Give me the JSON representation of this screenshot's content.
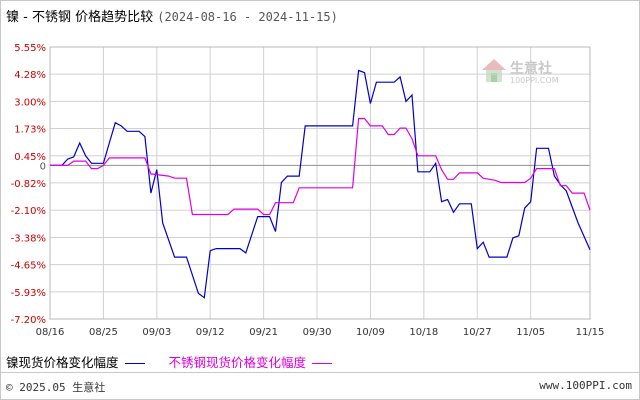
{
  "header": {
    "title": "镍 - 不锈钢 价格趋势比较",
    "date_range": "(2024-08-16 - 2024-11-15)"
  },
  "legend": [
    {
      "label": "镍现货价格变化幅度",
      "color": "#0000cc"
    },
    {
      "label": "不锈钢现货价格变化幅度",
      "color": "#e000e0"
    }
  ],
  "footer": {
    "copyright": "© 2025.05 生意社",
    "url": "www.100PPI.com"
  },
  "watermark": {
    "text": "生意社",
    "url": "100PPI.COM"
  },
  "chart_data": {
    "type": "line",
    "title": "镍 - 不锈钢 价格趋势比较",
    "xlabel": "",
    "ylabel": "",
    "x_range": [
      "2024-08-16",
      "2024-11-15"
    ],
    "ylim": [
      -7.2,
      5.55
    ],
    "y_ticks": [
      {
        "value": 5.55,
        "label": "5.55%",
        "color": "#cc0000"
      },
      {
        "value": 4.28,
        "label": "4.28%",
        "color": "#cc0000"
      },
      {
        "value": 3.0,
        "label": "3.00%",
        "color": "#cc0000"
      },
      {
        "value": 1.73,
        "label": "1.73%",
        "color": "#cc0000"
      },
      {
        "value": 0.45,
        "label": "0.45%",
        "color": "#cc0000"
      },
      {
        "value": 0,
        "label": "0",
        "color": "#555555"
      },
      {
        "value": -0.82,
        "label": "-0.82%",
        "color": "#cc0000"
      },
      {
        "value": -2.1,
        "label": "-2.10%",
        "color": "#cc0000"
      },
      {
        "value": -3.38,
        "label": "-3.38%",
        "color": "#cc0000"
      },
      {
        "value": -4.65,
        "label": "-4.65%",
        "color": "#cc0000"
      },
      {
        "value": -5.93,
        "label": "-5.93%",
        "color": "#cc0000"
      },
      {
        "value": -7.2,
        "label": "-7.20%",
        "color": "#cc0000"
      }
    ],
    "x_ticks": [
      {
        "date": "2024-08-16",
        "label": "08/16"
      },
      {
        "date": "2024-08-25",
        "label": "08/25"
      },
      {
        "date": "2024-09-03",
        "label": "09/03"
      },
      {
        "date": "2024-09-12",
        "label": "09/12"
      },
      {
        "date": "2024-09-21",
        "label": "09/21"
      },
      {
        "date": "2024-09-30",
        "label": "09/30"
      },
      {
        "date": "2024-10-09",
        "label": "10/09"
      },
      {
        "date": "2024-10-18",
        "label": "10/18"
      },
      {
        "date": "2024-10-27",
        "label": "10/27"
      },
      {
        "date": "2024-11-05",
        "label": "11/05"
      },
      {
        "date": "2024-11-15",
        "label": "11/15"
      }
    ],
    "grid": true,
    "legend_position": "bottom",
    "series": [
      {
        "name": "镍现货价格变化幅度",
        "color": "#0000cc",
        "points": [
          [
            "2024-08-16",
            0
          ],
          [
            "2024-08-18",
            0
          ],
          [
            "2024-08-19",
            0.3
          ],
          [
            "2024-08-20",
            0.4
          ],
          [
            "2024-08-21",
            1.05
          ],
          [
            "2024-08-22",
            0.45
          ],
          [
            "2024-08-23",
            0.1
          ],
          [
            "2024-08-25",
            0.1
          ],
          [
            "2024-08-26",
            1.05
          ],
          [
            "2024-08-27",
            2.0
          ],
          [
            "2024-08-28",
            1.85
          ],
          [
            "2024-08-29",
            1.6
          ],
          [
            "2024-08-31",
            1.6
          ],
          [
            "2024-09-01",
            1.35
          ],
          [
            "2024-09-02",
            -1.3
          ],
          [
            "2024-09-03",
            -0.2
          ],
          [
            "2024-09-04",
            -2.7
          ],
          [
            "2024-09-06",
            -4.3
          ],
          [
            "2024-09-08",
            -4.3
          ],
          [
            "2024-09-10",
            -6.0
          ],
          [
            "2024-09-11",
            -6.2
          ],
          [
            "2024-09-12",
            -4.0
          ],
          [
            "2024-09-13",
            -3.9
          ],
          [
            "2024-09-17",
            -3.9
          ],
          [
            "2024-09-18",
            -4.1
          ],
          [
            "2024-09-20",
            -2.4
          ],
          [
            "2024-09-22",
            -2.4
          ],
          [
            "2024-09-23",
            -3.1
          ],
          [
            "2024-09-24",
            -0.8
          ],
          [
            "2024-09-25",
            -0.5
          ],
          [
            "2024-09-27",
            -0.5
          ],
          [
            "2024-09-28",
            1.85
          ],
          [
            "2024-10-06",
            1.85
          ],
          [
            "2024-10-07",
            4.45
          ],
          [
            "2024-10-08",
            4.35
          ],
          [
            "2024-10-09",
            2.9
          ],
          [
            "2024-10-10",
            3.9
          ],
          [
            "2024-10-13",
            3.9
          ],
          [
            "2024-10-14",
            4.15
          ],
          [
            "2024-10-15",
            3.0
          ],
          [
            "2024-10-16",
            3.3
          ],
          [
            "2024-10-17",
            -0.3
          ],
          [
            "2024-10-19",
            -0.3
          ],
          [
            "2024-10-20",
            0.1
          ],
          [
            "2024-10-21",
            -1.7
          ],
          [
            "2024-10-22",
            -1.6
          ],
          [
            "2024-10-23",
            -2.2
          ],
          [
            "2024-10-24",
            -1.8
          ],
          [
            "2024-10-26",
            -1.8
          ],
          [
            "2024-10-27",
            -3.9
          ],
          [
            "2024-10-28",
            -3.6
          ],
          [
            "2024-10-29",
            -4.3
          ],
          [
            "2024-11-01",
            -4.3
          ],
          [
            "2024-11-02",
            -3.4
          ],
          [
            "2024-11-03",
            -3.3
          ],
          [
            "2024-11-04",
            -2.0
          ],
          [
            "2024-11-05",
            -1.7
          ],
          [
            "2024-11-06",
            0.8
          ],
          [
            "2024-11-08",
            0.8
          ],
          [
            "2024-11-09",
            -0.5
          ],
          [
            "2024-11-10",
            -0.9
          ],
          [
            "2024-11-11",
            -1.2
          ],
          [
            "2024-11-13",
            -2.7
          ],
          [
            "2024-11-15",
            -3.95
          ]
        ]
      },
      {
        "name": "不锈钢现货价格变化幅度",
        "color": "#e000e0",
        "points": [
          [
            "2024-08-16",
            0
          ],
          [
            "2024-08-19",
            0
          ],
          [
            "2024-08-20",
            0.2
          ],
          [
            "2024-08-22",
            0.2
          ],
          [
            "2024-08-23",
            -0.15
          ],
          [
            "2024-08-24",
            -0.15
          ],
          [
            "2024-08-25",
            0
          ],
          [
            "2024-08-26",
            0.35
          ],
          [
            "2024-08-31",
            0.35
          ],
          [
            "2024-09-01",
            0.35
          ],
          [
            "2024-09-02",
            -0.4
          ],
          [
            "2024-09-05",
            -0.5
          ],
          [
            "2024-09-06",
            -0.6
          ],
          [
            "2024-09-08",
            -0.6
          ],
          [
            "2024-09-09",
            -2.3
          ],
          [
            "2024-09-15",
            -2.3
          ],
          [
            "2024-09-16",
            -2.05
          ],
          [
            "2024-09-20",
            -2.05
          ],
          [
            "2024-09-21",
            -2.3
          ],
          [
            "2024-09-22",
            -2.3
          ],
          [
            "2024-09-23",
            -1.75
          ],
          [
            "2024-09-26",
            -1.75
          ],
          [
            "2024-09-27",
            -1.05
          ],
          [
            "2024-10-03",
            -1.05
          ],
          [
            "2024-10-04",
            -1.05
          ],
          [
            "2024-10-06",
            -1.05
          ],
          [
            "2024-10-07",
            2.2
          ],
          [
            "2024-10-08",
            2.2
          ],
          [
            "2024-10-09",
            1.85
          ],
          [
            "2024-10-11",
            1.85
          ],
          [
            "2024-10-12",
            1.45
          ],
          [
            "2024-10-13",
            1.45
          ],
          [
            "2024-10-14",
            1.75
          ],
          [
            "2024-10-15",
            1.75
          ],
          [
            "2024-10-16",
            1.25
          ],
          [
            "2024-10-17",
            0.45
          ],
          [
            "2024-10-20",
            0.45
          ],
          [
            "2024-10-21",
            -0.2
          ],
          [
            "2024-10-22",
            -0.65
          ],
          [
            "2024-10-23",
            -0.65
          ],
          [
            "2024-10-24",
            -0.35
          ],
          [
            "2024-10-25",
            -0.35
          ],
          [
            "2024-10-27",
            -0.35
          ],
          [
            "2024-10-28",
            -0.6
          ],
          [
            "2024-10-30",
            -0.7
          ],
          [
            "2024-10-31",
            -0.8
          ],
          [
            "2024-11-04",
            -0.8
          ],
          [
            "2024-11-05",
            -0.6
          ],
          [
            "2024-11-06",
            -0.15
          ],
          [
            "2024-11-09",
            -0.15
          ],
          [
            "2024-11-10",
            -0.95
          ],
          [
            "2024-11-11",
            -0.95
          ],
          [
            "2024-11-12",
            -1.3
          ],
          [
            "2024-11-14",
            -1.3
          ],
          [
            "2024-11-15",
            -2.1
          ]
        ]
      }
    ]
  }
}
